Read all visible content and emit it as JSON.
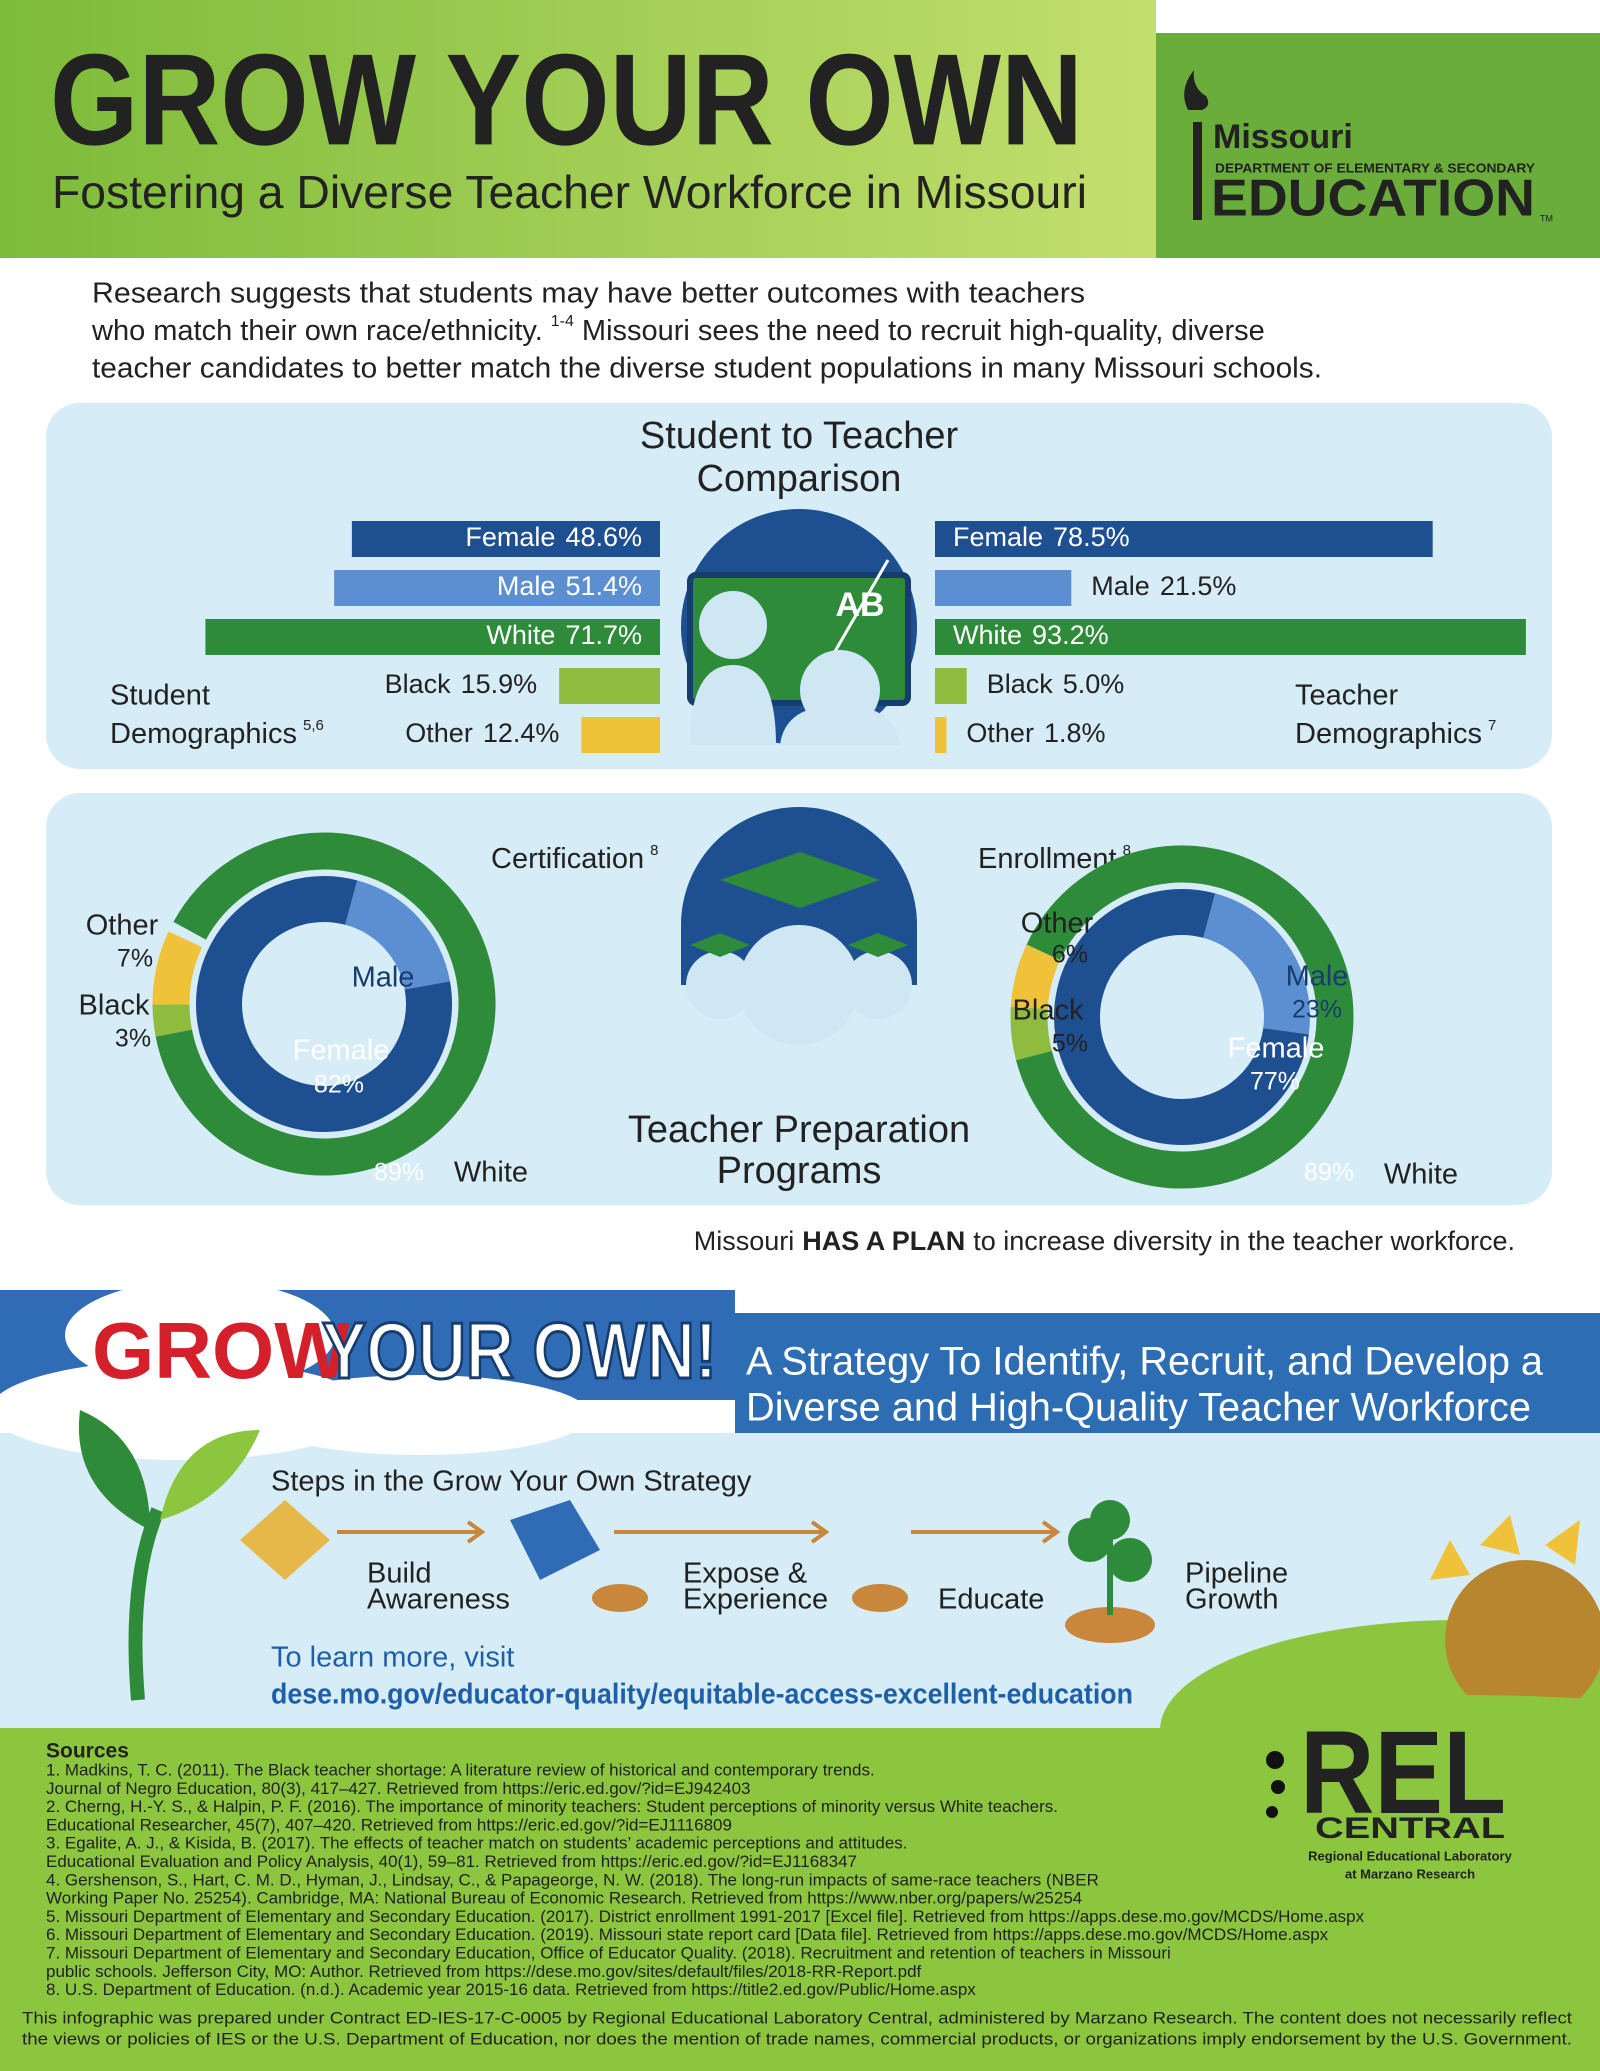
{
  "header": {
    "title": "GROW YOUR OWN",
    "subtitle": "Fostering a Diverse Teacher Workforce in Missouri",
    "logo": {
      "line1": "Missouri",
      "line2": "DEPARTMENT OF ELEMENTARY & SECONDARY",
      "line3": "EDUCATION",
      "tm": "TM"
    }
  },
  "intro": {
    "line1": "Research suggests that students may have better outcomes with teachers",
    "line2a": "who match their own race/ethnicity.",
    "line2_sup": "1-4",
    "line2b": "Missouri sees the need to recruit high-quality, diverse",
    "line3": "teacher candidates to better match the diverse student populations in many Missouri schools."
  },
  "comparison": {
    "title_line1": "Student to Teacher",
    "title_line2": "Comparison",
    "icon_text": "AB",
    "student": {
      "label_line1": "Student",
      "label_line2": "Demographics",
      "label_sup": "5,6",
      "bars": [
        {
          "name": "Female",
          "value": 48.6,
          "value_label": "48.6%",
          "color": "#1d4f91"
        },
        {
          "name": "Male",
          "value": 51.4,
          "value_label": "51.4%",
          "color": "#5b8fd1"
        },
        {
          "name": "White",
          "value": 71.7,
          "value_label": "71.7%",
          "color": "#2e8b3a"
        },
        {
          "name": "Black",
          "value": 15.9,
          "value_label": "15.9%",
          "color": "#8fbc3f"
        },
        {
          "name": "Other",
          "value": 12.4,
          "value_label": "12.4%",
          "color": "#f0c23a"
        }
      ]
    },
    "teacher": {
      "label_line1": "Teacher",
      "label_line2": "Demographics",
      "label_sup": "7",
      "bars": [
        {
          "name": "Female",
          "value": 78.5,
          "value_label": "78.5%",
          "color": "#1d4f91"
        },
        {
          "name": "Male",
          "value": 21.5,
          "value_label": "21.5%",
          "color": "#5b8fd1"
        },
        {
          "name": "White",
          "value": 93.2,
          "value_label": "93.2%",
          "color": "#2e8b3a"
        },
        {
          "name": "Black",
          "value": 5.0,
          "value_label": "5.0%",
          "color": "#8fbc3f"
        },
        {
          "name": "Other",
          "value": 1.8,
          "value_label": "1.8%",
          "color": "#f0c23a"
        }
      ]
    }
  },
  "programs": {
    "title_line1": "Teacher Preparation",
    "title_line2": "Programs",
    "certification": {
      "title": "Certification",
      "sup": "8",
      "race": [
        {
          "name": "Other",
          "value": 7,
          "value_label": "7%",
          "color": "#f0c23a"
        },
        {
          "name": "Black",
          "value": 3,
          "value_label": "3%",
          "color": "#8fbc3f"
        },
        {
          "name": "White",
          "value": 89,
          "value_label": "89%",
          "color": "#2e8b3a"
        }
      ],
      "gender": [
        {
          "name": "Male",
          "value": 18,
          "color": "#5b8fd1"
        },
        {
          "name": "Female",
          "value": 82,
          "value_label": "82%",
          "color": "#1d4f91"
        }
      ]
    },
    "enrollment": {
      "title": "Enrollment",
      "sup": "8",
      "race": [
        {
          "name": "Other",
          "value": 6,
          "value_label": "6%",
          "color": "#f0c23a"
        },
        {
          "name": "Black",
          "value": 5,
          "value_label": "5%",
          "color": "#8fbc3f"
        },
        {
          "name": "White",
          "value": 89,
          "value_label": "89%",
          "color": "#2e8b3a"
        }
      ],
      "gender": [
        {
          "name": "Male",
          "value": 23,
          "value_label": "23%",
          "color": "#5b8fd1"
        },
        {
          "name": "Female",
          "value": 77,
          "value_label": "77%",
          "color": "#1d4f91"
        }
      ]
    }
  },
  "plan": {
    "pre": "Missouri",
    "bold": "HAS A PLAN",
    "post": "to increase diversity in the teacher workforce."
  },
  "banner": {
    "grow": "GROW",
    "your_own": "YOUR OWN!",
    "strategy_line1": "A Strategy To Identify, Recruit, and Develop a",
    "strategy_line2": "Diverse and High-Quality Teacher Workforce"
  },
  "steps": {
    "title": "Steps in the Grow Your Own Strategy",
    "items": [
      {
        "line1": "Build",
        "line2": "Awareness"
      },
      {
        "line1": "Expose &",
        "line2": "Experience"
      },
      {
        "line1": "Educate"
      },
      {
        "line1": "Pipeline",
        "line2": "Growth"
      }
    ],
    "learn_more": "To learn more, visit",
    "url": "dese.mo.gov/educator-quality/equitable-access-excellent-education"
  },
  "sources": {
    "title": "Sources",
    "lines": [
      "1. Madkins, T. C. (2011). The Black teacher shortage: A literature review of historical and contemporary trends.",
      "Journal of Negro Education, 80(3), 417–427. Retrieved from https://eric.ed.gov/?id=EJ942403",
      "2. Cherng, H.-Y. S., & Halpin, P. F. (2016). The importance of minority teachers: Student perceptions of minority versus White teachers.",
      "Educational Researcher, 45(7), 407–420. Retrieved from https://eric.ed.gov/?id=EJ1116809",
      "3. Egalite, A. J., & Kisida, B. (2017). The effects of teacher match on students’ academic perceptions and attitudes.",
      "Educational Evaluation and Policy Analysis, 40(1), 59–81. Retrieved from https://eric.ed.gov/?id=EJ1168347",
      "4. Gershenson, S., Hart, C. M. D., Hyman, J., Lindsay, C., & Papageorge, N. W. (2018). The long-run impacts of same-race teachers (NBER",
      "Working Paper No. 25254). Cambridge, MA: National Bureau of Economic Research. Retrieved from https://www.nber.org/papers/w25254",
      "5. Missouri Department of Elementary and Secondary Education. (2017). District enrollment 1991-2017 [Excel file]. Retrieved from https://apps.dese.mo.gov/MCDS/Home.aspx",
      "6. Missouri Department of Elementary and Secondary Education. (2019). Missouri state report card [Data file]. Retrieved from https://apps.dese.mo.gov/MCDS/Home.aspx",
      "7. Missouri Department of Elementary and Secondary Education, Office of Educator Quality. (2018). Recruitment and retention of teachers in Missouri",
      "public schools. Jefferson City, MO: Author. Retrieved from https://dese.mo.gov/sites/default/files/2018-RR-Report.pdf",
      "8. U.S. Department of Education. (n.d.). Academic year 2015-16 data. Retrieved from https://title2.ed.gov/Public/Home.aspx"
    ]
  },
  "rel_logo": {
    "name": "REL",
    "sub": "CENTRAL",
    "line1": "Regional Educational Laboratory",
    "line2": "at Marzano Research"
  },
  "disclaimer": [
    "This infographic was prepared under Contract ED-IES-17-C-0005 by Regional Educational Laboratory Central, administered by Marzano Research. The content does not necessarily reflect",
    "the views or policies of IES or the U.S. Department of Education, nor does the mention of trade names, commercial products, or organizations imply endorsement by the U.S. Government."
  ]
}
